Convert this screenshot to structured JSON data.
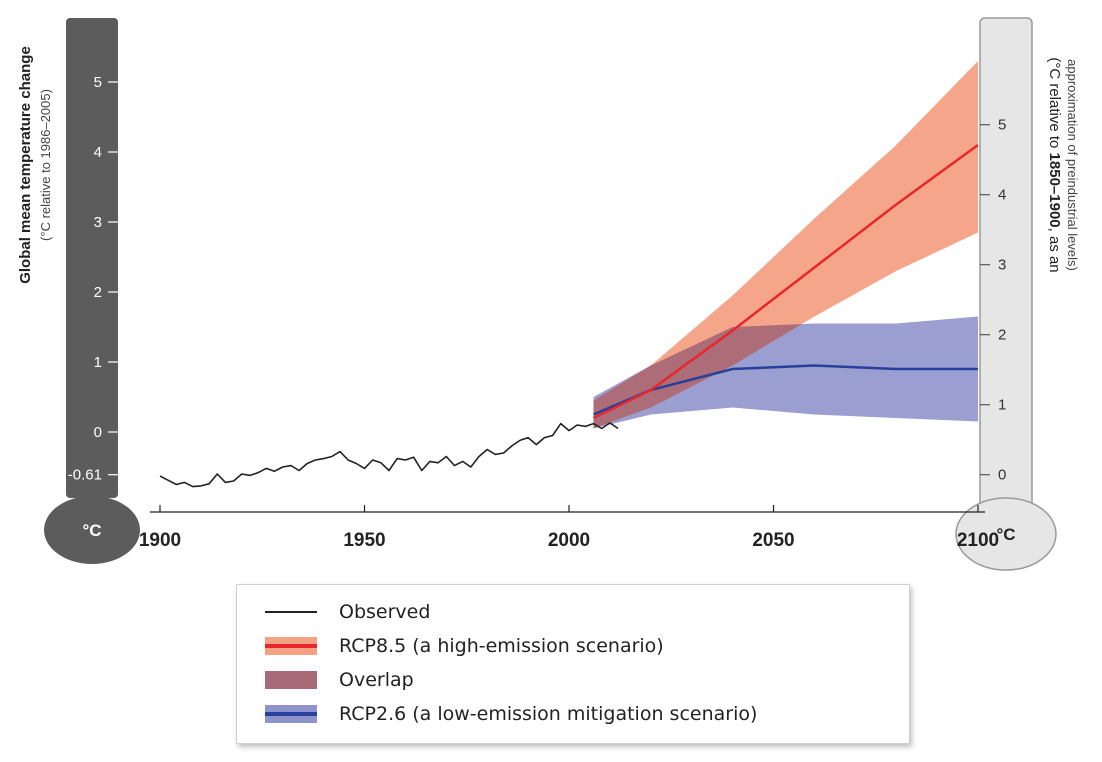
{
  "left_axis": {
    "title": "Global mean temperature change",
    "subtitle": "(°C relative to 1986–2005)",
    "unit": "°C",
    "ticks": [
      "5",
      "4",
      "3",
      "2",
      "1",
      "0",
      "-0.61"
    ],
    "tick_values": [
      5,
      4,
      3,
      2,
      1,
      0,
      -0.61
    ]
  },
  "right_axis": {
    "title_prefix": "(°C relative to ",
    "title_bold": "1850–1900",
    "title_suffix": ", as an",
    "subtitle": "approximation of preindustrial levels)",
    "unit": "°C",
    "ticks": [
      "5",
      "4",
      "3",
      "2",
      "1",
      "0"
    ],
    "tick_values": [
      5,
      4,
      3,
      2,
      1,
      0
    ]
  },
  "x_axis": {
    "ticks": [
      "1900",
      "1950",
      "2000",
      "2050",
      "2100"
    ],
    "tick_values": [
      1900,
      1950,
      2000,
      2050,
      2100
    ]
  },
  "legend": {
    "entries": [
      {
        "label": "Observed",
        "fill": "",
        "line": "#222222"
      },
      {
        "label": "RCP8.5 (a high-emission scenario)",
        "fill": "#f4a184",
        "line": "#e8262b"
      },
      {
        "label": "Overlap",
        "fill": "#a86a78",
        "line": ""
      },
      {
        "label": "RCP2.6 (a low-emission mitigation scenario)",
        "fill": "#8f93cc",
        "line": "#27409c"
      }
    ]
  },
  "colors": {
    "thermometer_left": "#5c5c5c",
    "thermometer_right": "#e6e6e6",
    "observed": "#222222",
    "rcp85_line": "#e8262b",
    "rcp85_band": "#f4a184",
    "overlap": "#a86a78",
    "rcp26_line": "#27409c",
    "rcp26_band": "#8f93cc"
  },
  "chart_data": {
    "type": "line",
    "title": "",
    "xlabel": "",
    "ylabel": "Global mean temperature change (°C relative to 1986–2005)",
    "y2label": "(°C relative to 1850–1900, as an approximation of preindustrial levels)",
    "xlim": [
      1900,
      2100
    ],
    "ylim": [
      -0.61,
      5.3
    ],
    "y2_offset": 0.61,
    "series": [
      {
        "name": "Observed",
        "kind": "line",
        "x": [
          1900,
          1902,
          1904,
          1906,
          1908,
          1910,
          1912,
          1914,
          1916,
          1918,
          1920,
          1922,
          1924,
          1926,
          1928,
          1930,
          1932,
          1934,
          1936,
          1938,
          1940,
          1942,
          1944,
          1946,
          1948,
          1950,
          1952,
          1954,
          1956,
          1958,
          1960,
          1962,
          1964,
          1966,
          1968,
          1970,
          1972,
          1974,
          1976,
          1978,
          1980,
          1982,
          1984,
          1986,
          1988,
          1990,
          1992,
          1994,
          1996,
          1998,
          2000,
          2002,
          2004,
          2006,
          2008,
          2010,
          2012
        ],
        "y": [
          -0.63,
          -0.69,
          -0.75,
          -0.72,
          -0.78,
          -0.77,
          -0.74,
          -0.6,
          -0.72,
          -0.7,
          -0.6,
          -0.62,
          -0.58,
          -0.52,
          -0.56,
          -0.5,
          -0.48,
          -0.55,
          -0.45,
          -0.4,
          -0.38,
          -0.35,
          -0.28,
          -0.4,
          -0.45,
          -0.52,
          -0.4,
          -0.44,
          -0.55,
          -0.38,
          -0.4,
          -0.36,
          -0.55,
          -0.42,
          -0.44,
          -0.35,
          -0.48,
          -0.42,
          -0.5,
          -0.35,
          -0.25,
          -0.32,
          -0.3,
          -0.2,
          -0.12,
          -0.08,
          -0.18,
          -0.08,
          -0.05,
          0.12,
          0.02,
          0.1,
          0.08,
          0.12,
          0.05,
          0.13,
          0.05
        ]
      },
      {
        "name": "RCP8.5",
        "kind": "line_band",
        "x": [
          2006,
          2020,
          2040,
          2060,
          2080,
          2100
        ],
        "y": [
          0.2,
          0.6,
          1.45,
          2.35,
          3.25,
          4.1
        ],
        "lower": [
          0.05,
          0.35,
          0.95,
          1.65,
          2.3,
          2.85
        ],
        "upper": [
          0.45,
          0.95,
          1.95,
          3.05,
          4.1,
          5.3
        ]
      },
      {
        "name": "RCP2.6",
        "kind": "line_band",
        "x": [
          2006,
          2020,
          2040,
          2060,
          2080,
          2100
        ],
        "y": [
          0.25,
          0.6,
          0.9,
          0.95,
          0.9,
          0.9
        ],
        "lower": [
          0.05,
          0.25,
          0.35,
          0.25,
          0.2,
          0.15
        ],
        "upper": [
          0.5,
          0.95,
          1.5,
          1.55,
          1.55,
          1.65
        ]
      }
    ],
    "legend_position": "bottom"
  }
}
